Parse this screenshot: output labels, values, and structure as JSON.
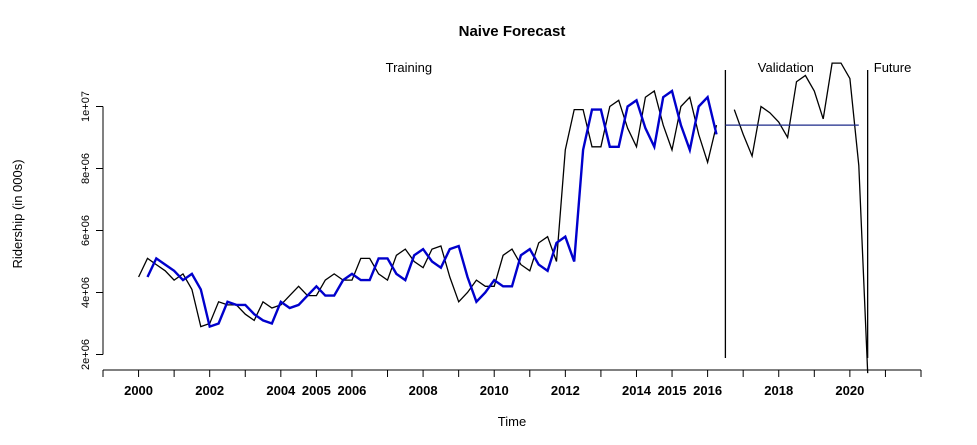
{
  "chart_data": {
    "type": "line",
    "title": "Naive Forecast",
    "xlabel": "Time",
    "ylabel": "Ridership (in 000s)",
    "xlim": [
      1999.0,
      2022.0
    ],
    "ylim": [
      1500000,
      11500000
    ],
    "x_ticks": [
      2000,
      2002,
      2004,
      2005,
      2006,
      2008,
      2010,
      2012,
      2014,
      2015,
      2016,
      2018,
      2020
    ],
    "x_tick_labels": [
      "2000",
      "2002",
      "2004",
      "2005",
      "2006",
      "2008",
      "2010",
      "2012",
      "2014",
      "2015",
      "2016",
      "2018",
      "2020"
    ],
    "y_ticks": [
      2000000,
      4000000,
      6000000,
      8000000,
      10000000
    ],
    "y_tick_labels": [
      "2e+06",
      "4e+06",
      "6e+06",
      "8e+06",
      "1e+07"
    ],
    "regions": [
      {
        "label": "Training",
        "x": 2007.6
      },
      {
        "label": "Validation",
        "x": 2018.2
      },
      {
        "label": "Future",
        "x": 2021.2
      }
    ],
    "vlines": [
      2016.5,
      2020.5
    ],
    "series": [
      {
        "color": "#000000",
        "x": [
          2000.0,
          2000.25,
          2000.5,
          2000.75,
          2001.0,
          2001.25,
          2001.5,
          2001.75,
          2002.0,
          2002.25,
          2002.5,
          2002.75,
          2003.0,
          2003.25,
          2003.5,
          2003.75,
          2004.0,
          2004.25,
          2004.5,
          2004.75,
          2005.0,
          2005.25,
          2005.5,
          2005.75,
          2006.0,
          2006.25,
          2006.5,
          2006.75,
          2007.0,
          2007.25,
          2007.5,
          2007.75,
          2008.0,
          2008.25,
          2008.5,
          2008.75,
          2009.0,
          2009.25,
          2009.5,
          2009.75,
          2010.0,
          2010.25,
          2010.5,
          2010.75,
          2011.0,
          2011.25,
          2011.5,
          2011.75,
          2012.0,
          2012.25,
          2012.5,
          2012.75,
          2013.0,
          2013.25,
          2013.5,
          2013.75,
          2014.0,
          2014.25,
          2014.5,
          2014.75,
          2015.0,
          2015.25,
          2015.5,
          2015.75,
          2016.0,
          2016.25,
          2016.5,
          2016.75,
          2017.0,
          2017.25,
          2017.5,
          2017.75,
          2018.0,
          2018.25,
          2018.5,
          2018.75,
          2019.0,
          2019.25,
          2019.5,
          2019.75,
          2020.0,
          2020.25,
          2020.5
        ],
        "y": [
          4500000,
          5100000,
          4900000,
          4700000,
          4400000,
          4600000,
          4100000,
          2900000,
          3000000,
          3700000,
          3600000,
          3600000,
          3300000,
          3100000,
          3700000,
          3500000,
          3600000,
          3900000,
          4200000,
          3900000,
          3900000,
          4400000,
          4600000,
          4400000,
          4400000,
          5100000,
          5100000,
          4600000,
          4400000,
          5200000,
          5400000,
          5000000,
          4800000,
          5400000,
          5500000,
          4500000,
          3700000,
          4000000,
          4400000,
          4200000,
          4200000,
          5200000,
          5400000,
          4900000,
          4700000,
          5600000,
          5800000,
          5000000,
          8600000,
          9900000,
          9900000,
          8700000,
          8700000,
          10000000,
          10200000,
          9300000,
          8700000,
          10300000,
          10500000,
          9400000,
          8600000,
          10000000,
          10300000,
          9100000,
          8200000,
          9400000,
          null,
          9900000,
          9100000,
          8400000,
          10000000,
          9800000,
          9500000,
          9000000,
          10800000,
          11000000,
          10500000,
          9600000,
          11400000,
          11400000,
          10900000,
          8100000,
          1400000
        ]
      },
      {
        "color": "#0000cc",
        "x": [
          2000.25,
          2000.5,
          2000.75,
          2001.0,
          2001.25,
          2001.5,
          2001.75,
          2002.0,
          2002.25,
          2002.5,
          2002.75,
          2003.0,
          2003.25,
          2003.5,
          2003.75,
          2004.0,
          2004.25,
          2004.5,
          2004.75,
          2005.0,
          2005.25,
          2005.5,
          2005.75,
          2006.0,
          2006.25,
          2006.5,
          2006.75,
          2007.0,
          2007.25,
          2007.5,
          2007.75,
          2008.0,
          2008.25,
          2008.5,
          2008.75,
          2009.0,
          2009.25,
          2009.5,
          2009.75,
          2010.0,
          2010.25,
          2010.5,
          2010.75,
          2011.0,
          2011.25,
          2011.5,
          2011.75,
          2012.0,
          2012.25,
          2012.5,
          2012.75,
          2013.0,
          2013.25,
          2013.5,
          2013.75,
          2014.0,
          2014.25,
          2014.5,
          2014.75,
          2015.0,
          2015.25,
          2015.5,
          2015.75,
          2016.0,
          2016.25
        ],
        "y": [
          4500000,
          5100000,
          4900000,
          4700000,
          4400000,
          4600000,
          4100000,
          2900000,
          3000000,
          3700000,
          3600000,
          3600000,
          3300000,
          3100000,
          3000000,
          3700000,
          3500000,
          3600000,
          3900000,
          4200000,
          3900000,
          3900000,
          4400000,
          4600000,
          4400000,
          4400000,
          5100000,
          5100000,
          4600000,
          4400000,
          5200000,
          5400000,
          5000000,
          4800000,
          5400000,
          5500000,
          4500000,
          3700000,
          4000000,
          4400000,
          4200000,
          4200000,
          5200000,
          5400000,
          4900000,
          4700000,
          5600000,
          5800000,
          5000000,
          8600000,
          9900000,
          9900000,
          8700000,
          8700000,
          10000000,
          10200000,
          9300000,
          8700000,
          10300000,
          10500000,
          9400000,
          8600000,
          10000000,
          10300000,
          9100000
        ]
      },
      {
        "color": "#1c2a8a",
        "x": [
          2016.5,
          2020.25
        ],
        "y": [
          9400000,
          9400000
        ]
      }
    ]
  }
}
